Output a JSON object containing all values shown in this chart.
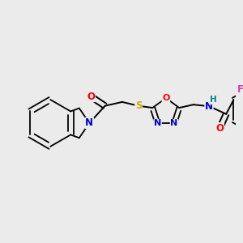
{
  "bg_color": "#ebebeb",
  "atom_colors": {
    "C": "#000000",
    "N": "#0000cc",
    "O": "#ff0000",
    "S": "#ccaa00",
    "F": "#cc44aa",
    "H": "#008888"
  },
  "bond_color": "#000000",
  "figsize": [
    3.0,
    3.0
  ],
  "dpi": 100
}
